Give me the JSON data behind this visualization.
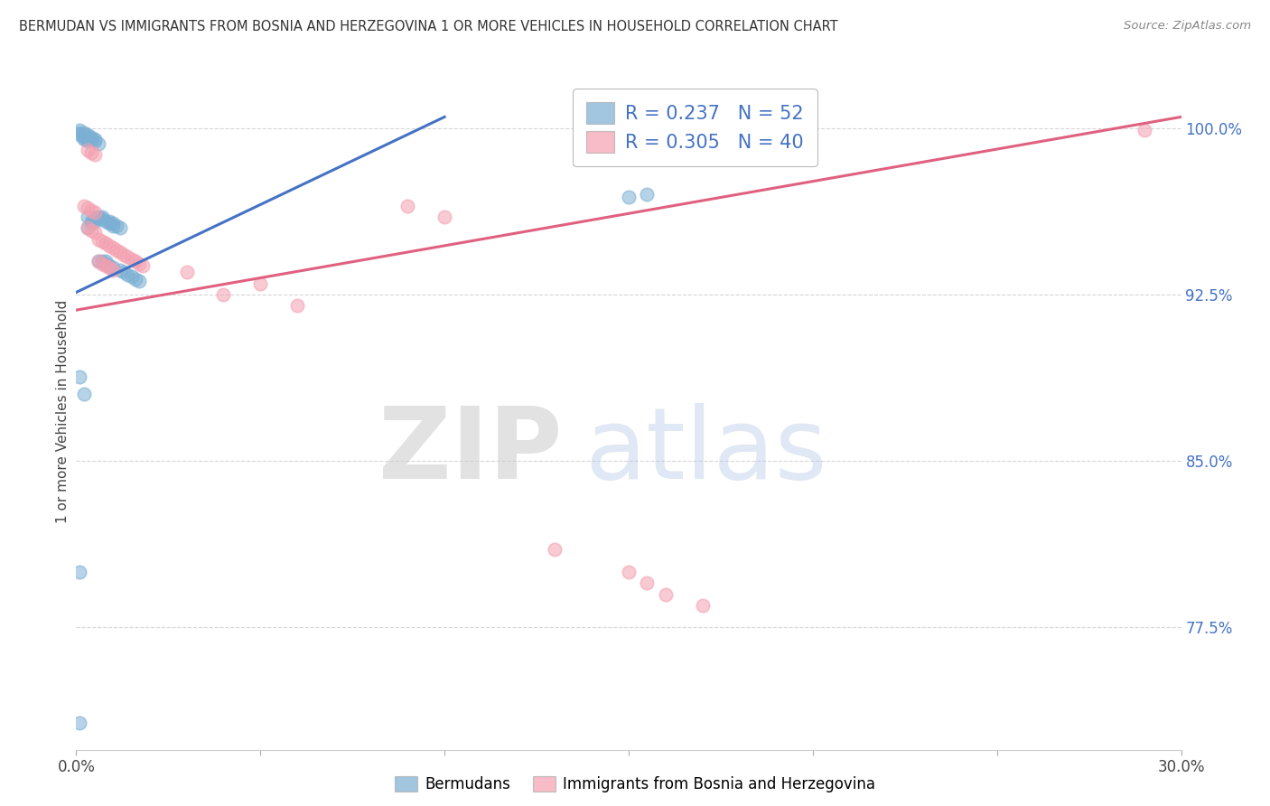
{
  "title": "BERMUDAN VS IMMIGRANTS FROM BOSNIA AND HERZEGOVINA 1 OR MORE VEHICLES IN HOUSEHOLD CORRELATION CHART",
  "source": "Source: ZipAtlas.com",
  "ylabel": "1 or more Vehicles in Household",
  "legend_label1": "Bermudans",
  "legend_label2": "Immigrants from Bosnia and Herzegovina",
  "R1": 0.237,
  "N1": 52,
  "R2": 0.305,
  "N2": 40,
  "xlim": [
    0.0,
    0.3
  ],
  "ylim": [
    0.72,
    1.025
  ],
  "yticks": [
    0.775,
    0.85,
    0.925,
    1.0
  ],
  "ytick_labels": [
    "77.5%",
    "85.0%",
    "92.5%",
    "100.0%"
  ],
  "xticks": [
    0.0,
    0.05,
    0.1,
    0.15,
    0.2,
    0.25,
    0.3
  ],
  "xtick_labels": [
    "0.0%",
    "",
    "",
    "",
    "",
    "",
    "30.0%"
  ],
  "color1": "#7bafd4",
  "color2": "#f4a0b0",
  "line_color1": "#4472c4",
  "line_color2": "#e06080",
  "background_color": "#ffffff",
  "blue_line_x0": 0.0,
  "blue_line_y0": 0.926,
  "blue_line_x1": 0.1,
  "blue_line_y1": 1.005,
  "pink_line_x0": 0.0,
  "pink_line_y0": 0.918,
  "pink_line_x1": 0.3,
  "pink_line_y1": 1.005,
  "scatter1_x": [
    0.001,
    0.001,
    0.001,
    0.002,
    0.002,
    0.002,
    0.002,
    0.003,
    0.003,
    0.003,
    0.003,
    0.003,
    0.003,
    0.004,
    0.004,
    0.004,
    0.004,
    0.005,
    0.005,
    0.005,
    0.005,
    0.005,
    0.006,
    0.006,
    0.006,
    0.006,
    0.007,
    0.007,
    0.007,
    0.008,
    0.008,
    0.008,
    0.009,
    0.009,
    0.009,
    0.01,
    0.01,
    0.01,
    0.011,
    0.012,
    0.012,
    0.013,
    0.014,
    0.015,
    0.016,
    0.017,
    0.001,
    0.001,
    0.001,
    0.002,
    0.155,
    0.15
  ],
  "scatter1_y": [
    0.999,
    0.998,
    0.997,
    0.998,
    0.997,
    0.996,
    0.995,
    0.997,
    0.996,
    0.995,
    0.994,
    0.96,
    0.955,
    0.996,
    0.995,
    0.958,
    0.957,
    0.995,
    0.994,
    0.96,
    0.959,
    0.958,
    0.993,
    0.96,
    0.959,
    0.94,
    0.96,
    0.959,
    0.94,
    0.958,
    0.94,
    0.939,
    0.958,
    0.957,
    0.938,
    0.957,
    0.956,
    0.937,
    0.956,
    0.955,
    0.936,
    0.935,
    0.934,
    0.933,
    0.932,
    0.931,
    0.888,
    0.8,
    0.732,
    0.88,
    0.97,
    0.969
  ],
  "scatter2_x": [
    0.002,
    0.003,
    0.003,
    0.004,
    0.004,
    0.005,
    0.005,
    0.006,
    0.006,
    0.007,
    0.007,
    0.008,
    0.008,
    0.009,
    0.009,
    0.01,
    0.01,
    0.011,
    0.012,
    0.013,
    0.014,
    0.015,
    0.016,
    0.017,
    0.018,
    0.03,
    0.04,
    0.05,
    0.06,
    0.09,
    0.1,
    0.13,
    0.15,
    0.155,
    0.16,
    0.17,
    0.003,
    0.004,
    0.005,
    0.29
  ],
  "scatter2_y": [
    0.965,
    0.964,
    0.955,
    0.963,
    0.954,
    0.962,
    0.953,
    0.95,
    0.94,
    0.949,
    0.939,
    0.948,
    0.938,
    0.947,
    0.937,
    0.946,
    0.936,
    0.945,
    0.944,
    0.943,
    0.942,
    0.941,
    0.94,
    0.939,
    0.938,
    0.935,
    0.925,
    0.93,
    0.92,
    0.965,
    0.96,
    0.81,
    0.8,
    0.795,
    0.79,
    0.785,
    0.99,
    0.989,
    0.988,
    0.999
  ]
}
